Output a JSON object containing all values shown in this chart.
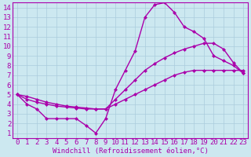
{
  "xlabel": "Windchill (Refroidissement éolien,°C)",
  "bg_color": "#cce8f0",
  "grid_color": "#aaccdd",
  "line_color": "#aa00aa",
  "xlim": [
    -0.5,
    23.5
  ],
  "ylim": [
    0.5,
    14.5
  ],
  "xticks": [
    0,
    1,
    2,
    3,
    4,
    5,
    6,
    7,
    8,
    9,
    10,
    11,
    12,
    13,
    14,
    15,
    16,
    17,
    18,
    19,
    20,
    21,
    22,
    23
  ],
  "yticks": [
    1,
    2,
    3,
    4,
    5,
    6,
    7,
    8,
    9,
    10,
    11,
    12,
    13,
    14
  ],
  "line1_x": [
    0,
    1,
    2,
    3,
    4,
    5,
    6,
    7,
    8,
    9,
    10,
    11,
    12,
    13,
    14,
    15,
    16,
    17,
    18,
    19,
    20,
    21,
    22,
    23
  ],
  "line1_y": [
    5.0,
    4.0,
    3.5,
    2.5,
    2.5,
    2.5,
    2.5,
    1.8,
    1.0,
    2.5,
    5.5,
    7.5,
    9.5,
    13.0,
    14.3,
    14.5,
    13.5,
    12.0,
    11.5,
    10.8,
    9.0,
    8.5,
    8.0,
    7.2
  ],
  "line2_x": [
    0,
    1,
    2,
    3,
    4,
    5,
    6,
    7,
    8,
    9,
    10,
    11,
    12,
    13,
    14,
    15,
    16,
    17,
    18,
    19,
    20,
    21,
    22,
    23
  ],
  "line2_y": [
    5.0,
    4.8,
    4.5,
    4.2,
    4.0,
    3.8,
    3.7,
    3.6,
    3.5,
    3.5,
    4.0,
    4.5,
    5.0,
    5.5,
    6.0,
    6.5,
    7.0,
    7.3,
    7.5,
    7.5,
    7.5,
    7.5,
    7.5,
    7.5
  ],
  "line3_x": [
    0,
    1,
    2,
    3,
    4,
    5,
    6,
    7,
    8,
    9,
    10,
    11,
    12,
    13,
    14,
    15,
    16,
    17,
    18,
    19,
    20,
    21,
    22,
    23
  ],
  "line3_y": [
    5.0,
    4.5,
    4.2,
    4.0,
    3.8,
    3.7,
    3.6,
    3.5,
    3.5,
    3.5,
    4.5,
    5.5,
    6.5,
    7.5,
    8.2,
    8.8,
    9.3,
    9.7,
    10.0,
    10.3,
    10.3,
    9.7,
    8.3,
    7.2
  ],
  "marker_size": 2.5,
  "line_width": 1.0,
  "font_size": 6.5
}
